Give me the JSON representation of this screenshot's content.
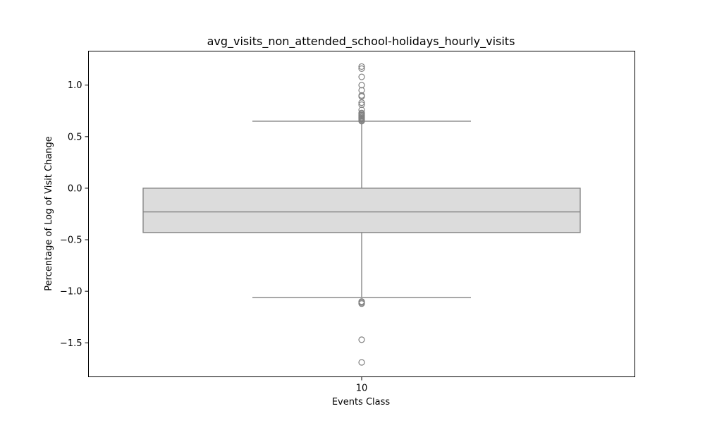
{
  "chart_data": {
    "type": "box",
    "title": "avg_visits_non_attended_school-holidays_hourly_visits",
    "xlabel": "Events Class",
    "ylabel": "Percentage of Log of Visit Change",
    "categories": [
      "10"
    ],
    "ylim": [
      -1.83,
      1.33
    ],
    "yticks": [
      -1.5,
      -1.0,
      -0.5,
      0.0,
      0.5,
      1.0
    ],
    "ytick_labels": [
      "−1.5",
      "−1.0",
      "−0.5",
      "0.0",
      "0.5",
      "1.0"
    ],
    "boxes": [
      {
        "category": "10",
        "q1": -0.43,
        "median": -0.23,
        "q3": 0.0,
        "whisker_low": -1.06,
        "whisker_high": 0.65,
        "outliers": [
          1.18,
          1.16,
          1.08,
          1.0,
          0.95,
          0.9,
          0.89,
          0.83,
          0.81,
          0.76,
          0.73,
          0.72,
          0.71,
          0.7,
          0.69,
          0.68,
          0.67,
          0.66,
          0.65,
          -1.1,
          -1.11,
          -1.12,
          -1.47,
          -1.69
        ]
      }
    ],
    "colors": {
      "box_fill": "#dcdcdc",
      "line": "#808080",
      "axis": "#000000"
    }
  }
}
